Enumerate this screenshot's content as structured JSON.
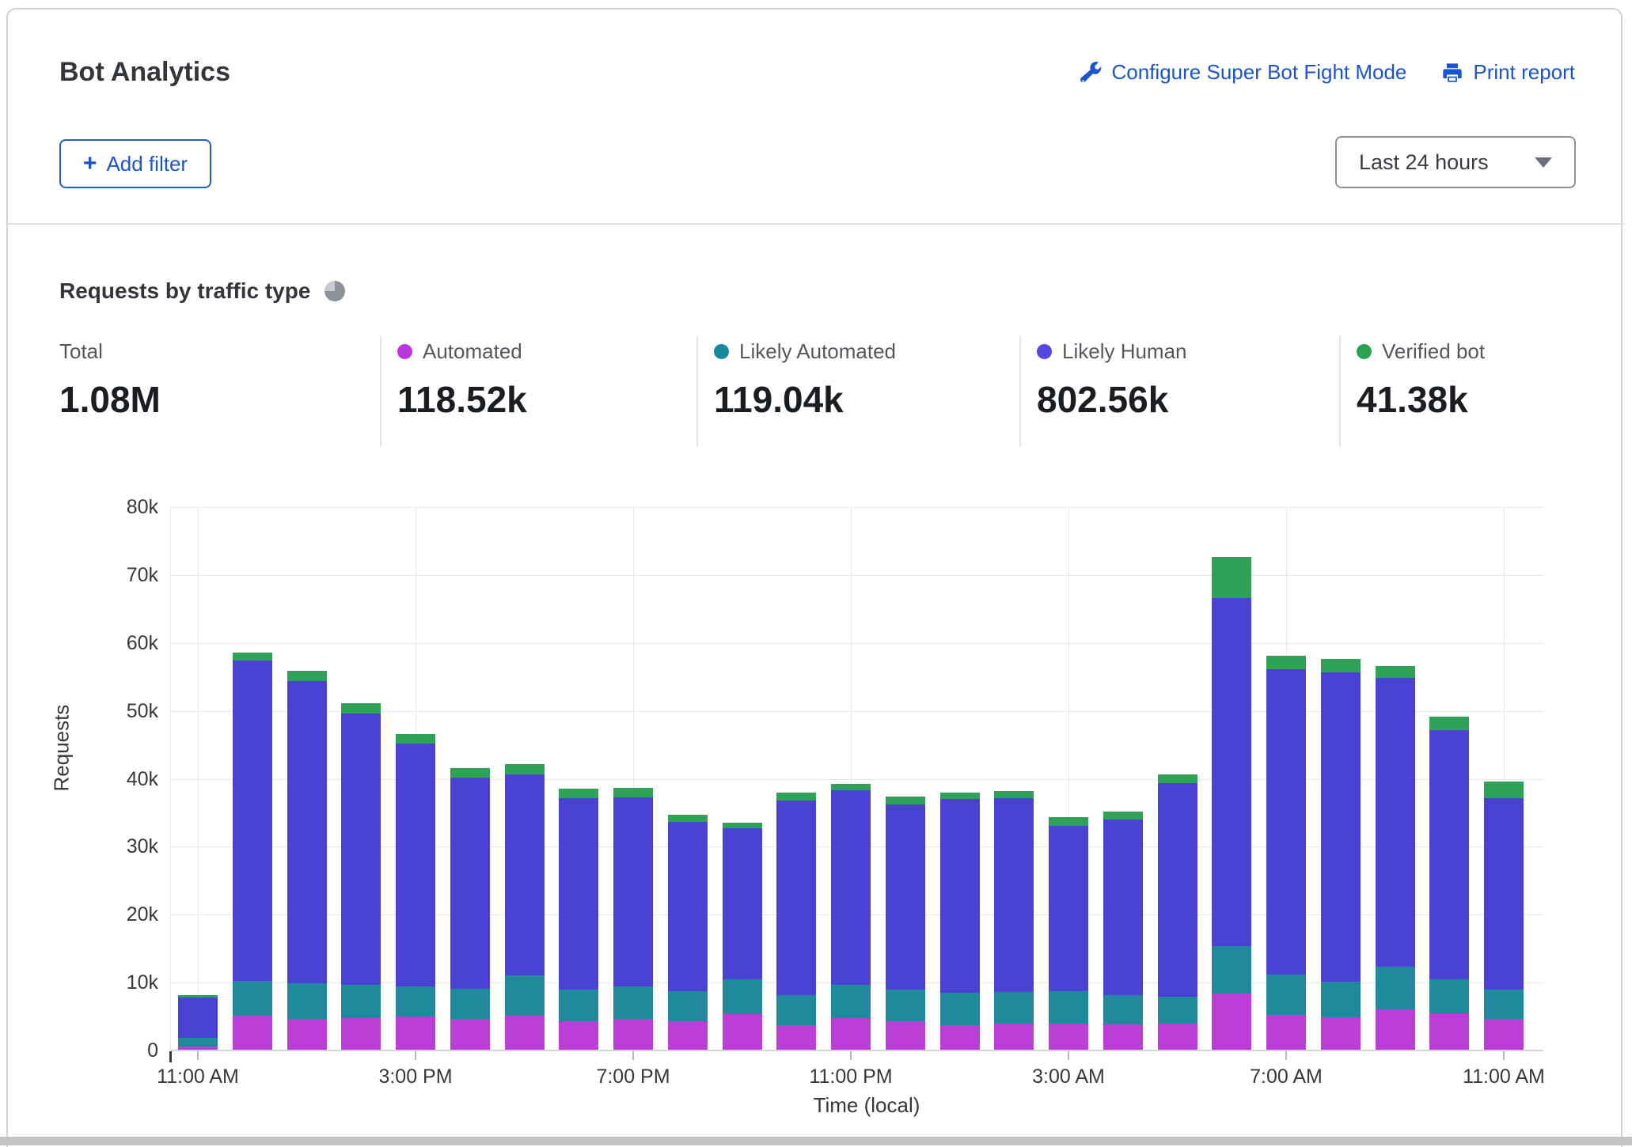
{
  "header": {
    "title": "Bot Analytics",
    "configure_link": "Configure Super Bot Fight Mode",
    "print_link": "Print report",
    "add_filter_label": "Add filter",
    "time_range": "Last 24 hours",
    "link_color": "#1b55cd"
  },
  "section": {
    "title": "Requests by traffic type"
  },
  "stats": [
    {
      "label": "Total",
      "value": "1.08M",
      "dot": null
    },
    {
      "label": "Automated",
      "value": "118.52k",
      "dot": "#b936dc"
    },
    {
      "label": "Likely Automated",
      "value": "119.04k",
      "dot": "#19879d"
    },
    {
      "label": "Likely Human",
      "value": "802.56k",
      "dot": "#5447e0"
    },
    {
      "label": "Verified bot",
      "value": "41.38k",
      "dot": "#28a353"
    }
  ],
  "chart_data": {
    "type": "bar",
    "stacked": true,
    "title": "Requests by traffic type",
    "xlabel": "Time (local)",
    "ylabel": "Requests",
    "ylim": [
      0,
      80000
    ],
    "grid": true,
    "ytick_values": [
      0,
      10000,
      20000,
      30000,
      40000,
      50000,
      60000,
      70000,
      80000
    ],
    "ytick_labels": [
      "0",
      "10k",
      "20k",
      "30k",
      "40k",
      "50k",
      "60k",
      "70k",
      "80k"
    ],
    "xtick_labels": [
      "11:00 AM",
      "3:00 PM",
      "7:00 PM",
      "11:00 PM",
      "3:00 AM",
      "7:00 AM",
      "11:00 AM"
    ],
    "xtick_bar_indices": [
      0,
      4,
      8,
      12,
      16,
      20,
      24
    ],
    "bar_count": 25,
    "series": [
      {
        "name": "Automated",
        "color": "#bb3ed8",
        "values": [
          500,
          5000,
          4500,
          4700,
          4900,
          4600,
          5000,
          4200,
          4500,
          4200,
          5200,
          3600,
          4700,
          4200,
          3600,
          3900,
          3800,
          3700,
          3900,
          8300,
          5100,
          4800,
          5900,
          5400,
          4500
        ]
      },
      {
        "name": "Likely Automated",
        "color": "#20899b",
        "values": [
          1200,
          5100,
          5300,
          4800,
          4400,
          4400,
          5900,
          4600,
          4800,
          4400,
          5200,
          4400,
          4900,
          4600,
          4800,
          4600,
          4800,
          4300,
          3900,
          7000,
          6000,
          5200,
          6300,
          5000,
          4300
        ]
      },
      {
        "name": "Likely Human",
        "color": "#4a42d4",
        "values": [
          6000,
          47200,
          44500,
          40000,
          35800,
          31100,
          29600,
          28200,
          27900,
          24900,
          22200,
          28700,
          28600,
          27300,
          28500,
          28500,
          24300,
          25900,
          31500,
          51200,
          44900,
          45500,
          42500,
          36600,
          28200
        ]
      },
      {
        "name": "Verified bot",
        "color": "#2ea358",
        "values": [
          300,
          1200,
          1500,
          1500,
          1400,
          1400,
          1500,
          1400,
          1400,
          1100,
          800,
          1200,
          900,
          1200,
          1000,
          1100,
          1300,
          1200,
          1200,
          6000,
          2000,
          2000,
          1800,
          2000,
          2500
        ]
      }
    ]
  }
}
